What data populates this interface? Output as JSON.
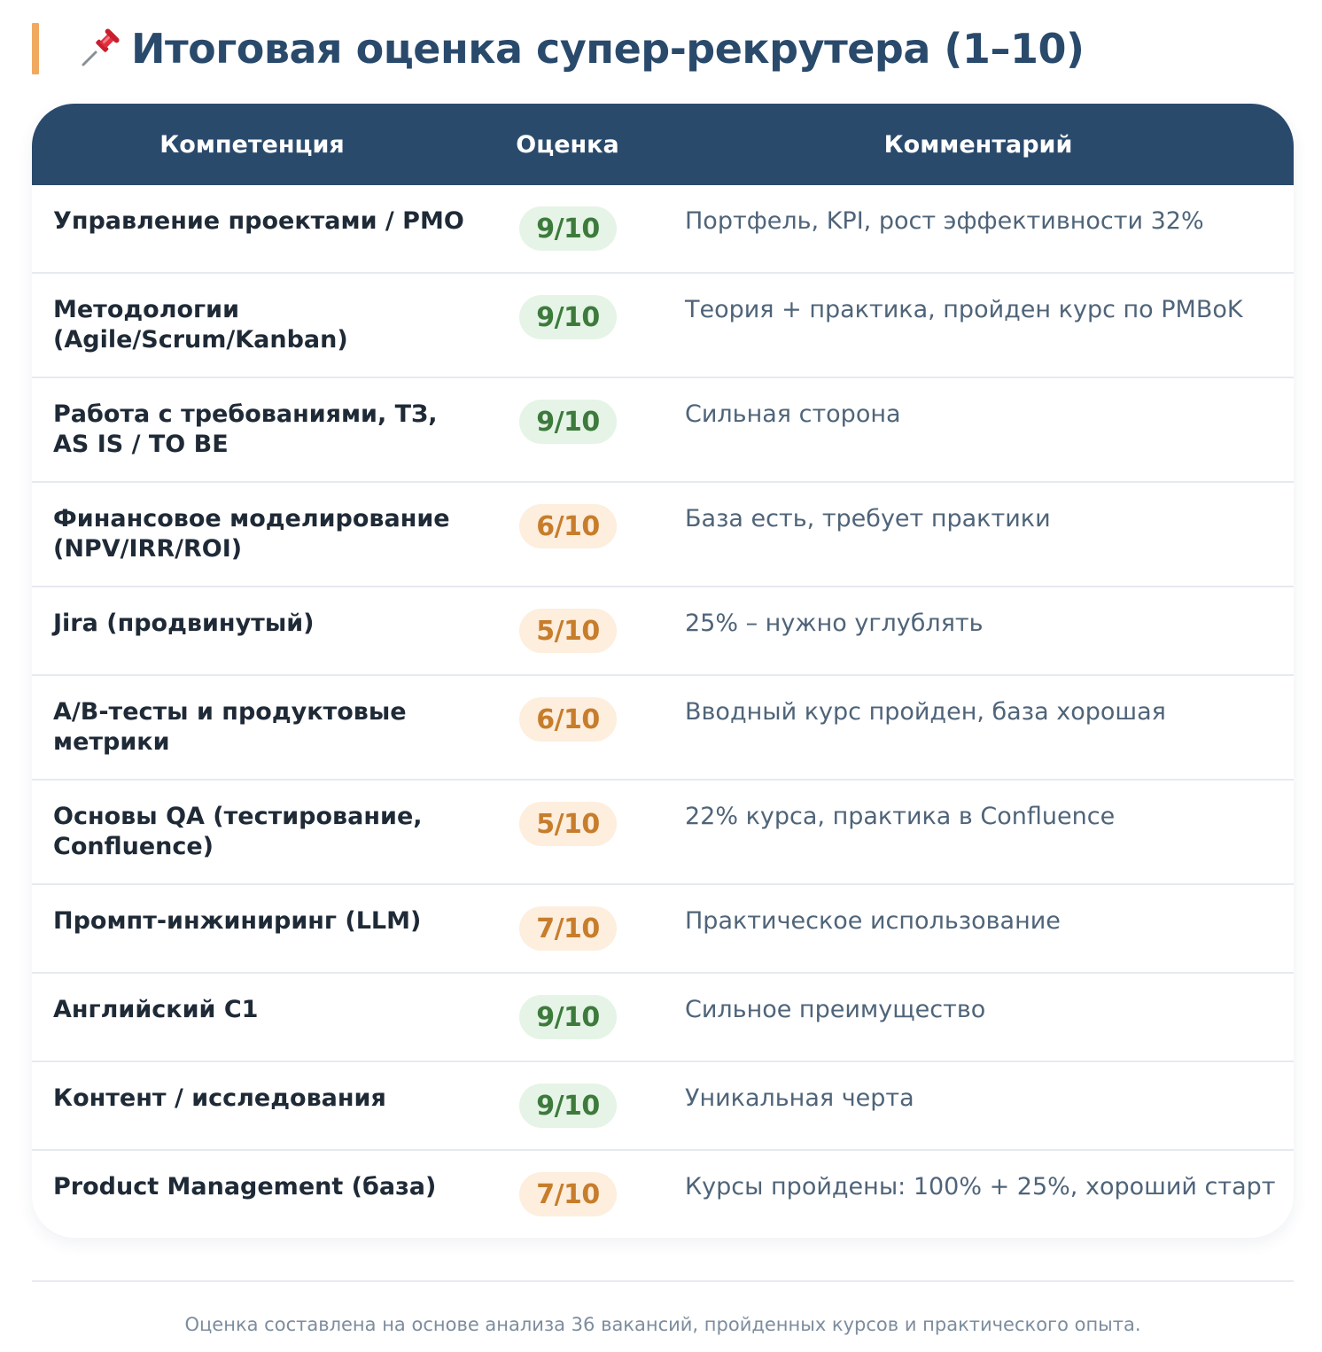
{
  "header": {
    "icon": "pushpin-icon",
    "title": "Итоговая оценка супер-рекрутера (1–10)"
  },
  "colors": {
    "header_bg": "#2a4a6c",
    "title_accent": "#f0a961",
    "score_high_bg": "#e5f4e6",
    "score_high_text": "#3d7a3c",
    "score_mid_bg": "#fdeede",
    "score_mid_text": "#c77d2c"
  },
  "table": {
    "columns": [
      "Компетенция",
      "Оценка",
      "Комментарий"
    ],
    "rows": [
      {
        "competence": "Управление проектами / PMO",
        "score": "9/10",
        "level": "high",
        "comment": "Портфель, KPI, рост эффективности 32%"
      },
      {
        "competence": "Методологии (Agile/Scrum/Kanban)",
        "score": "9/10",
        "level": "high",
        "comment": "Теория + практика, пройден курс по PMBoK"
      },
      {
        "competence": "Работа с требованиями, ТЗ, AS IS / TO BE",
        "score": "9/10",
        "level": "high",
        "comment": "Сильная сторона"
      },
      {
        "competence": "Финансовое моделирование (NPV/IRR/ROI)",
        "score": "6/10",
        "level": "mid",
        "comment": "База есть, требует практики"
      },
      {
        "competence": "Jira (продвинутый)",
        "score": "5/10",
        "level": "mid",
        "comment": "25% – нужно углублять"
      },
      {
        "competence": "A/B-тесты и продуктовые метрики",
        "score": "6/10",
        "level": "mid",
        "comment": "Вводный курс пройден, база хорошая"
      },
      {
        "competence": "Основы QA (тестирование, Confluence)",
        "score": "5/10",
        "level": "mid",
        "comment": "22% курса, практика в Confluence"
      },
      {
        "competence": "Промпт-инжиниринг (LLM)",
        "score": "7/10",
        "level": "mid",
        "comment": "Практическое использование"
      },
      {
        "competence": "Английский C1",
        "score": "9/10",
        "level": "high",
        "comment": "Сильное преимущество"
      },
      {
        "competence": "Контент / исследования",
        "score": "9/10",
        "level": "high",
        "comment": "Уникальная черта"
      },
      {
        "competence": "Product Management (база)",
        "score": "7/10",
        "level": "mid",
        "comment": "Курсы пройдены: 100% + 25%, хороший старт"
      }
    ]
  },
  "footer": {
    "note": "Оценка составлена на основе анализа 36 вакансий, пройденных курсов и практического опыта."
  }
}
